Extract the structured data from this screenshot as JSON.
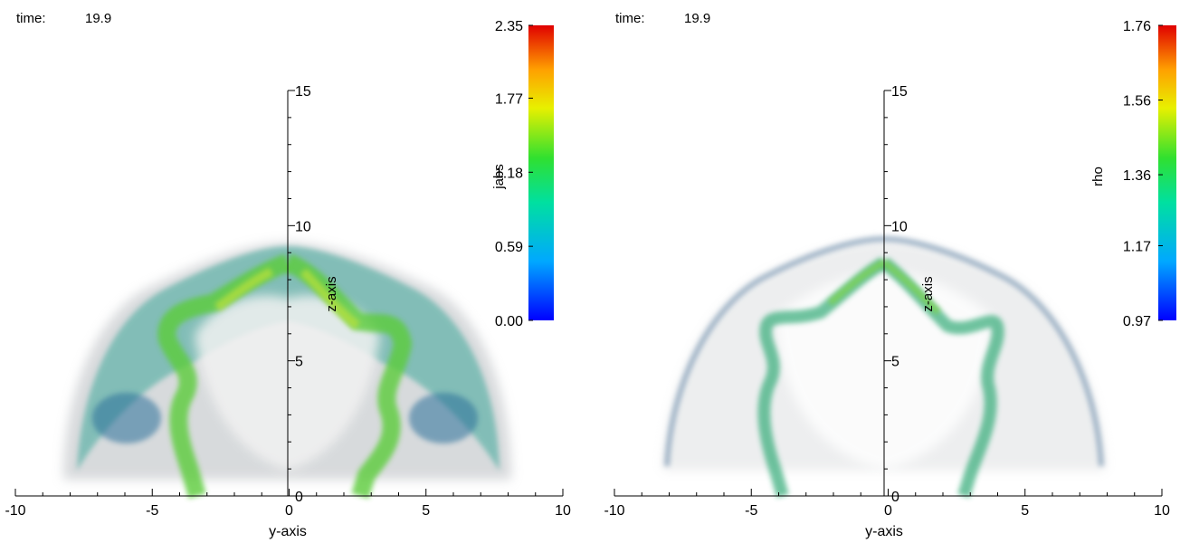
{
  "panels": [
    {
      "time_label": "time:",
      "time_value": "19.9",
      "colorbar_label": "jabs",
      "colorbar_ticks": [
        "2.35",
        "1.77",
        "1.18",
        "0.59",
        "0.00"
      ],
      "xlabel": "y-axis",
      "z_axis_label": "z-axis"
    },
    {
      "time_label": "time:",
      "time_value": "19.9",
      "colorbar_label": "rho",
      "colorbar_ticks": [
        "1.76",
        "1.56",
        "1.36",
        "1.17",
        "0.97"
      ],
      "xlabel": "y-axis",
      "z_axis_label": "z-axis"
    }
  ],
  "chart_data": [
    {
      "type": "heatmap",
      "title": "",
      "xlabel": "y-axis",
      "x_ticks": [
        -10,
        -5,
        0,
        5,
        10
      ],
      "xlim": [
        -10,
        10
      ],
      "y_ticks": [
        0,
        5,
        10,
        15
      ],
      "ylim": [
        0,
        15
      ],
      "colorbar": {
        "label": "jabs",
        "min": 0.0,
        "max": 2.35,
        "ticks": [
          0.0,
          0.59,
          1.18,
          1.77,
          2.35
        ]
      }
    },
    {
      "type": "heatmap",
      "title": "",
      "xlabel": "y-axis",
      "x_ticks": [
        -10,
        -5,
        0,
        5,
        10
      ],
      "xlim": [
        -10,
        10
      ],
      "y_ticks": [
        0,
        5,
        10,
        15
      ],
      "ylim": [
        0,
        15
      ],
      "colorbar": {
        "label": "rho",
        "min": 0.97,
        "max": 1.76,
        "ticks": [
          0.97,
          1.17,
          1.36,
          1.56,
          1.76
        ]
      }
    }
  ]
}
